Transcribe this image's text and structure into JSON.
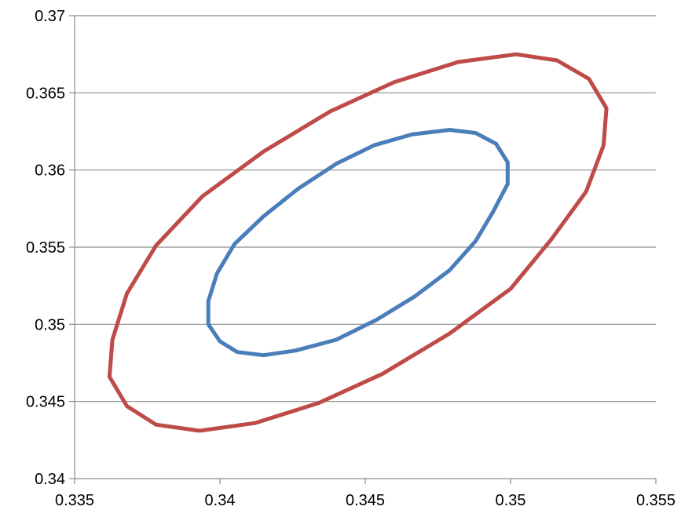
{
  "chart_data": {
    "type": "scatter",
    "title": "",
    "xlabel": "",
    "ylabel": "",
    "xlim": [
      0.335,
      0.355
    ],
    "ylim": [
      0.34,
      0.37
    ],
    "x_ticks": [
      "0.335",
      "0.34",
      "0.345",
      "0.35",
      "0.355"
    ],
    "y_ticks": [
      "0.34",
      "0.345",
      "0.35",
      "0.355",
      "0.36",
      "0.365",
      "0.37"
    ],
    "grid": "horizontal",
    "legend": "none",
    "series": [
      {
        "color": "#4a7ebb",
        "x": [
          0.3495,
          0.3499,
          0.3499,
          0.3494,
          0.3488,
          0.3479,
          0.3467,
          0.3454,
          0.344,
          0.3426,
          0.3415,
          0.3406,
          0.34,
          0.3396,
          0.3396,
          0.3399,
          0.3405,
          0.3415,
          0.3427,
          0.344,
          0.3453,
          0.3466,
          0.3479,
          0.3488,
          0.3495
        ],
        "y": [
          0.3617,
          0.3605,
          0.3591,
          0.3573,
          0.3554,
          0.3535,
          0.3518,
          0.3503,
          0.349,
          0.3483,
          0.348,
          0.3482,
          0.3489,
          0.35,
          0.3515,
          0.3533,
          0.3552,
          0.357,
          0.3588,
          0.3604,
          0.3616,
          0.3623,
          0.3626,
          0.3624,
          0.3617
        ]
      },
      {
        "color": "#be4b48",
        "x": [
          0.3527,
          0.3533,
          0.3532,
          0.3526,
          0.3514,
          0.35,
          0.3479,
          0.3456,
          0.3434,
          0.3412,
          0.3393,
          0.3378,
          0.3368,
          0.3362,
          0.3363,
          0.3368,
          0.3378,
          0.3394,
          0.3415,
          0.3438,
          0.346,
          0.3482,
          0.3502,
          0.3516,
          0.3527
        ],
        "y": [
          0.3659,
          0.364,
          0.3616,
          0.3586,
          0.3555,
          0.3523,
          0.3494,
          0.3468,
          0.3449,
          0.3436,
          0.3431,
          0.3435,
          0.3447,
          0.3466,
          0.349,
          0.352,
          0.3551,
          0.3583,
          0.3612,
          0.3638,
          0.3657,
          0.367,
          0.3675,
          0.3671,
          0.3659
        ]
      }
    ]
  }
}
